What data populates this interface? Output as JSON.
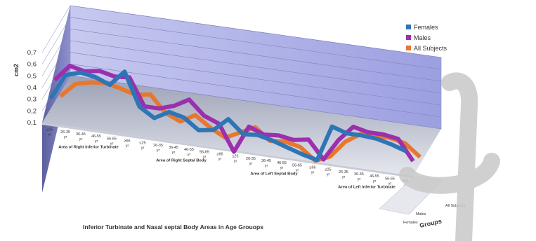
{
  "chart_data": {
    "type": "line",
    "title": "Inferior Turbinate and Nasal septal Body Areas in Age Grouops",
    "ylabel": "cm2",
    "depth_axis_label": "Groups",
    "ylim": [
      0.1,
      0.7
    ],
    "yticks": [
      "0,1",
      "0,2",
      "0,3",
      "0,4",
      "0,5",
      "0,6",
      "0,7"
    ],
    "grid": true,
    "legend_position": "top-right",
    "groups": [
      {
        "label": "Area of Right Inferior Turbinate",
        "categories": [
          "≤25 yr",
          "26-35 yr",
          "36-45 yr",
          "46-55 yr",
          "56-65 yr",
          "≥66 yr"
        ]
      },
      {
        "label": "Area of Right Septal Body",
        "categories": [
          "≤25 yr",
          "26-35 yr",
          "36-45 yr",
          "46-55 yr",
          "56-65 yr",
          "≥66 yr"
        ]
      },
      {
        "label": "Area of Left Septal Body",
        "categories": [
          "≤25 yr",
          "26-35 yr",
          "36-45 yr",
          "46-55 yr",
          "56-65 yr",
          "≥66 yr"
        ]
      },
      {
        "label": "Area of Left Inferior Turbinate",
        "categories": [
          "≤25 yr",
          "26-35 yr",
          "36-45 yr",
          "46-55 yr",
          "56-65 yr",
          "≥66 yr"
        ]
      }
    ],
    "series": [
      {
        "name": "Females",
        "color": "#2E75B6",
        "values": [
          0.28,
          0.5,
          0.54,
          0.52,
          0.47,
          0.6,
          0.32,
          0.24,
          0.31,
          0.28,
          0.19,
          0.21,
          0.32,
          0.21,
          0.22,
          0.19,
          0.15,
          0.11,
          0.08,
          0.38,
          0.34,
          0.34,
          0.33,
          0.3,
          0.26
        ]
      },
      {
        "name": "Males",
        "color": "#9B2FAE",
        "values": [
          0.47,
          0.61,
          0.58,
          0.6,
          0.57,
          0.58,
          0.35,
          0.35,
          0.39,
          0.46,
          0.34,
          0.29,
          0.07,
          0.3,
          0.25,
          0.26,
          0.24,
          0.26,
          0.11,
          0.29,
          0.42,
          0.39,
          0.39,
          0.37,
          0.2
        ]
      },
      {
        "name": "All Subjects",
        "color": "#E8772E",
        "values": [
          0.38,
          0.5,
          0.53,
          0.54,
          0.51,
          0.47,
          0.49,
          0.35,
          0.29,
          0.36,
          0.27,
          0.2,
          0.26,
          0.32,
          0.22,
          0.23,
          0.2,
          0.1,
          0.15,
          0.29,
          0.37,
          0.37,
          0.37,
          0.34,
          0.24
        ]
      }
    ],
    "depth_categories": [
      "All Subjects",
      "Males",
      "Females"
    ]
  }
}
